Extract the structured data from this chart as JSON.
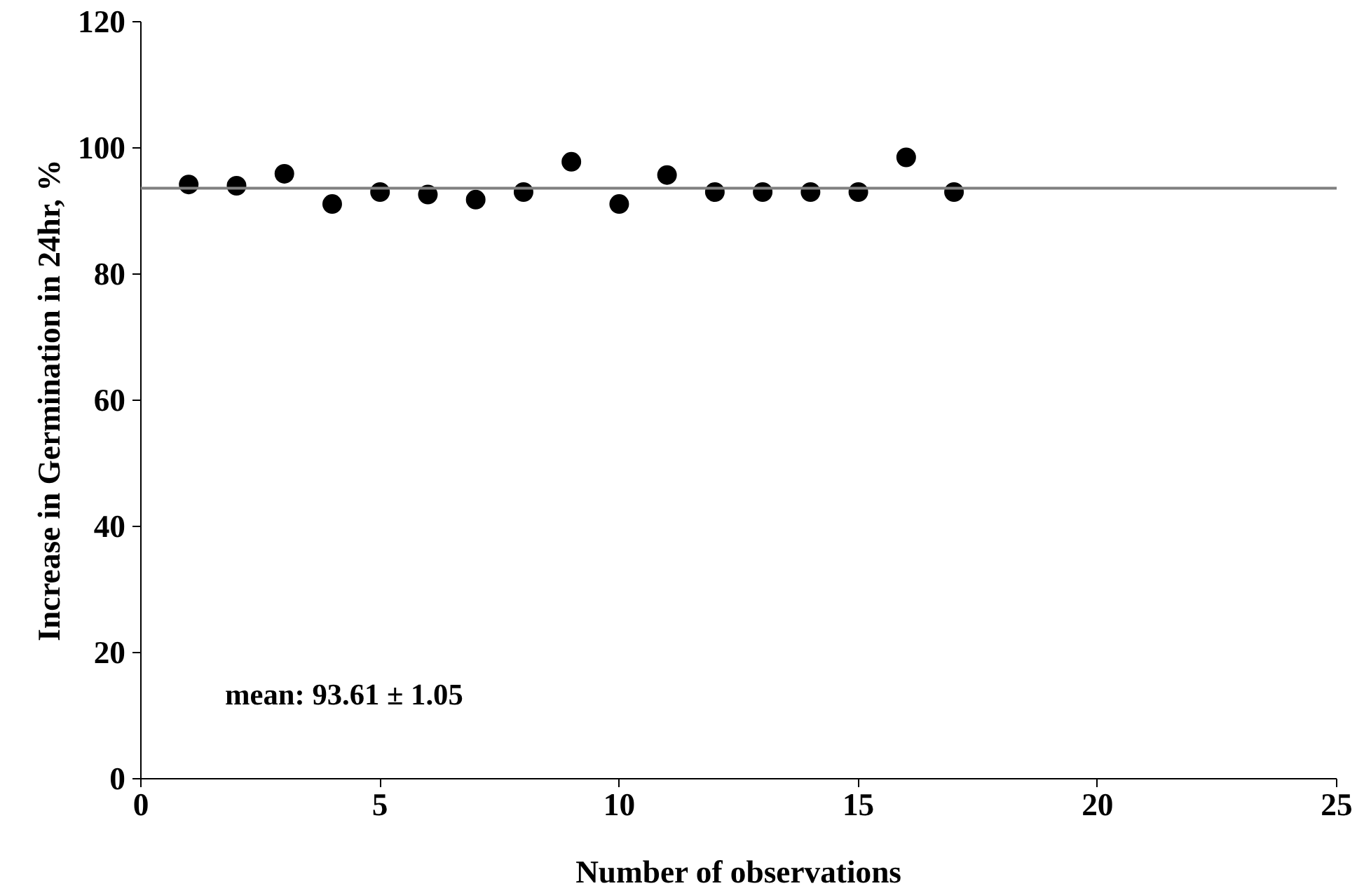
{
  "chart_data": {
    "type": "scatter",
    "xlabel": "Number of observations",
    "ylabel": "Increase in Germination in 24hr, %",
    "x": [
      1,
      2,
      3,
      4,
      5,
      6,
      7,
      8,
      9,
      10,
      11,
      12,
      13,
      14,
      15,
      16,
      17
    ],
    "values": [
      94.2,
      94.0,
      95.9,
      91.1,
      93.0,
      92.6,
      91.8,
      93.0,
      97.8,
      91.1,
      95.7,
      93.0,
      93.0,
      93.0,
      93.0,
      98.5,
      93.0
    ],
    "color": "#000000",
    "marker": "circle",
    "xlim": [
      0,
      25
    ],
    "xticks": [
      0,
      5,
      10,
      15,
      20,
      25
    ],
    "ylim": [
      0,
      120
    ],
    "yticks": [
      0,
      20,
      40,
      60,
      80,
      100,
      120
    ],
    "grid": false,
    "ref_lines": [
      {
        "axis": "y",
        "value": 93.61,
        "color": "#808080"
      }
    ],
    "annotations": [
      "mean: 93.61 ± 1.05"
    ]
  }
}
